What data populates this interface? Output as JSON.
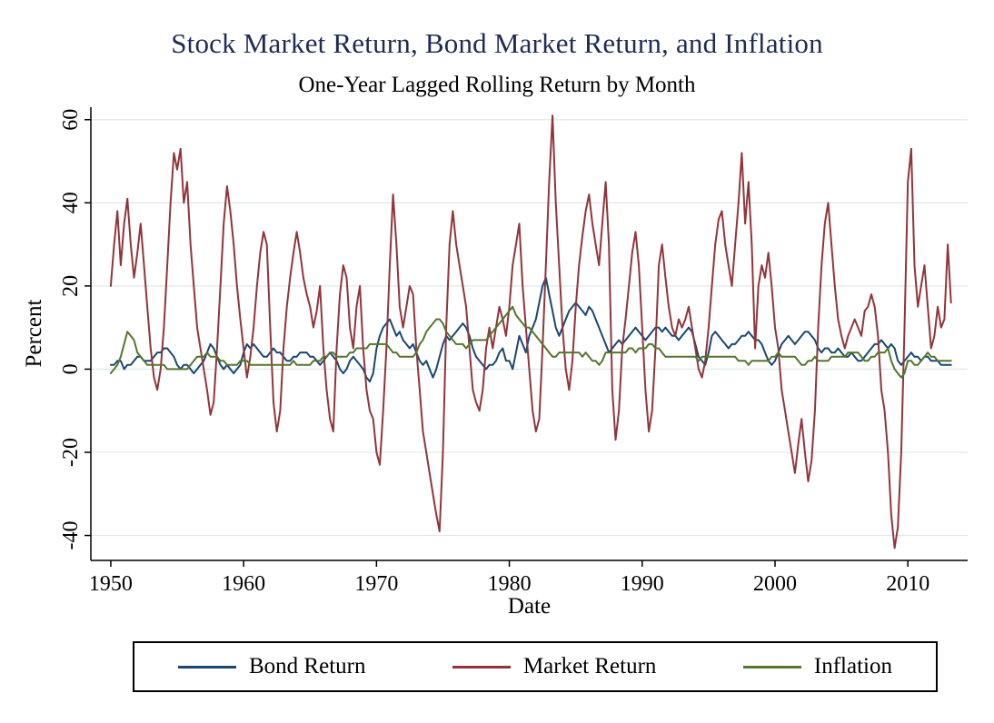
{
  "chart_data": {
    "type": "line",
    "title": "Stock Market Return, Bond Market Return, and Inflation",
    "subtitle": "One-Year Lagged Rolling Return by Month",
    "xlabel": "Date",
    "ylabel": "Percent",
    "x_unit": "year",
    "x_start": 1950,
    "x_step": 0.25,
    "xlim": [
      1948.5,
      2014.5
    ],
    "ylim": [
      -46,
      63
    ],
    "x_ticks": [
      1950,
      1960,
      1970,
      1980,
      1990,
      2000,
      2010
    ],
    "y_ticks": [
      -40,
      -20,
      0,
      20,
      40,
      60
    ],
    "grid": "horizontal",
    "legend_position": "bottom",
    "colors": {
      "grid": "#dfe9ee",
      "axis": "#000000",
      "title": "#1f2b55",
      "background": "#ffffff"
    },
    "series": [
      {
        "name": "Bond Return",
        "color": "#1a476f",
        "values": [
          1,
          1,
          2,
          2,
          0,
          1,
          1,
          2,
          3,
          3,
          2,
          2,
          2,
          3,
          4,
          4,
          5,
          5,
          4,
          3,
          1,
          0,
          1,
          1,
          0,
          -1,
          0,
          1,
          2,
          4,
          6,
          5,
          3,
          1,
          0,
          1,
          0,
          -1,
          0,
          1,
          4,
          6,
          5,
          6,
          5,
          4,
          3,
          3,
          4,
          5,
          4,
          4,
          3,
          2,
          2,
          3,
          3,
          4,
          4,
          4,
          3,
          3,
          2,
          1,
          2,
          3,
          4,
          3,
          2,
          0,
          -1,
          0,
          2,
          3,
          2,
          1,
          0,
          -2,
          -3,
          -1,
          5,
          8,
          10,
          11,
          12,
          10,
          8,
          9,
          7,
          6,
          5,
          6,
          4,
          2,
          1,
          2,
          0,
          -2,
          0,
          3,
          6,
          8,
          7,
          8,
          9,
          10,
          11,
          10,
          8,
          5,
          3,
          2,
          1,
          0,
          1,
          1,
          2,
          4,
          5,
          2,
          2,
          0,
          4,
          8,
          6,
          4,
          8,
          10,
          12,
          16,
          20,
          22,
          18,
          14,
          10,
          8,
          10,
          12,
          14,
          15,
          16,
          15,
          14,
          13,
          15,
          14,
          12,
          10,
          8,
          6,
          4,
          5,
          6,
          7,
          6,
          7,
          8,
          9,
          10,
          9,
          8,
          7,
          8,
          9,
          10,
          10,
          9,
          10,
          9,
          8,
          8,
          7,
          8,
          9,
          10,
          9,
          6,
          3,
          2,
          1,
          4,
          8,
          9,
          8,
          7,
          6,
          5,
          6,
          6,
          7,
          8,
          8,
          9,
          8,
          7,
          7,
          6,
          4,
          2,
          1,
          2,
          4,
          6,
          7,
          8,
          7,
          6,
          7,
          8,
          9,
          9,
          8,
          7,
          5,
          4,
          5,
          5,
          4,
          4,
          5,
          4,
          3,
          3,
          4,
          3,
          2,
          2,
          3,
          4,
          5,
          6,
          6,
          7,
          6,
          5,
          6,
          5,
          2,
          1,
          2,
          3,
          4,
          3,
          3,
          2,
          3,
          3,
          2,
          2,
          2,
          1,
          1,
          1,
          1
        ]
      },
      {
        "name": "Market Return",
        "color": "#90353b",
        "values": [
          20,
          30,
          38,
          25,
          35,
          41,
          30,
          22,
          28,
          35,
          25,
          15,
          5,
          -2,
          -5,
          0,
          10,
          25,
          40,
          52,
          48,
          53,
          40,
          45,
          30,
          20,
          10,
          5,
          0,
          -5,
          -11,
          -8,
          5,
          20,
          35,
          44,
          38,
          30,
          20,
          12,
          5,
          -2,
          3,
          10,
          20,
          28,
          33,
          30,
          10,
          -8,
          -15,
          -10,
          5,
          15,
          22,
          28,
          33,
          28,
          22,
          18,
          15,
          10,
          14,
          20,
          5,
          -5,
          -12,
          -15,
          5,
          18,
          25,
          22,
          10,
          5,
          15,
          20,
          5,
          -5,
          -10,
          -12,
          -20,
          -23,
          -10,
          5,
          25,
          42,
          30,
          15,
          10,
          15,
          20,
          18,
          5,
          -5,
          -15,
          -20,
          -25,
          -30,
          -35,
          -39,
          -20,
          10,
          30,
          38,
          30,
          25,
          20,
          15,
          5,
          -5,
          -8,
          -10,
          -5,
          5,
          10,
          5,
          10,
          15,
          12,
          8,
          15,
          25,
          30,
          35,
          20,
          10,
          0,
          -10,
          -15,
          -12,
          5,
          25,
          45,
          61,
          40,
          25,
          10,
          0,
          -5,
          2,
          15,
          25,
          32,
          38,
          42,
          35,
          30,
          25,
          35,
          45,
          30,
          -5,
          -17,
          -10,
          5,
          12,
          20,
          28,
          33,
          25,
          10,
          -5,
          -15,
          -10,
          5,
          25,
          30,
          22,
          15,
          10,
          8,
          12,
          10,
          12,
          15,
          10,
          5,
          0,
          -2,
          2,
          10,
          20,
          30,
          36,
          38,
          30,
          25,
          20,
          30,
          40,
          52,
          35,
          45,
          30,
          5,
          20,
          25,
          22,
          28,
          20,
          10,
          5,
          -5,
          -10,
          -15,
          -20,
          -25,
          -18,
          -12,
          -20,
          -27,
          -22,
          -10,
          10,
          25,
          35,
          40,
          30,
          20,
          12,
          8,
          5,
          8,
          10,
          12,
          10,
          8,
          14,
          15,
          18,
          15,
          8,
          -5,
          -10,
          -20,
          -35,
          -43,
          -38,
          -20,
          10,
          45,
          53,
          25,
          15,
          20,
          25,
          15,
          5,
          8,
          15,
          10,
          12,
          30,
          16
        ]
      },
      {
        "name": "Inflation",
        "color": "#55752f",
        "values": [
          -1,
          0,
          1,
          3,
          6,
          9,
          8,
          7,
          4,
          3,
          2,
          1,
          1,
          1,
          1,
          1,
          1,
          0,
          0,
          0,
          0,
          0,
          0,
          0,
          1,
          2,
          3,
          3,
          3,
          4,
          3,
          3,
          3,
          2,
          2,
          1,
          1,
          1,
          1,
          2,
          2,
          2,
          1,
          1,
          1,
          1,
          1,
          1,
          1,
          1,
          1,
          1,
          1,
          1,
          1,
          2,
          1,
          1,
          1,
          1,
          1,
          2,
          2,
          2,
          3,
          3,
          4,
          4,
          3,
          3,
          3,
          3,
          4,
          4,
          5,
          5,
          5,
          5,
          6,
          6,
          6,
          6,
          6,
          6,
          5,
          4,
          4,
          3,
          3,
          3,
          3,
          3,
          4,
          6,
          7,
          9,
          10,
          11,
          12,
          12,
          11,
          9,
          8,
          7,
          6,
          6,
          6,
          5,
          6,
          7,
          7,
          7,
          7,
          7,
          8,
          9,
          10,
          11,
          12,
          13,
          14,
          15,
          13,
          12,
          11,
          10,
          10,
          9,
          8,
          7,
          6,
          5,
          4,
          3,
          3,
          4,
          4,
          4,
          4,
          4,
          4,
          4,
          3,
          4,
          3,
          2,
          2,
          1,
          2,
          4,
          4,
          4,
          4,
          4,
          4,
          4,
          5,
          5,
          4,
          5,
          5,
          5,
          6,
          6,
          5,
          5,
          4,
          3,
          3,
          3,
          3,
          3,
          3,
          3,
          3,
          3,
          3,
          2,
          3,
          3,
          3,
          3,
          3,
          3,
          3,
          3,
          3,
          3,
          3,
          2,
          2,
          2,
          1,
          2,
          2,
          2,
          2,
          2,
          2,
          3,
          3,
          4,
          3,
          3,
          3,
          3,
          3,
          2,
          1,
          1,
          2,
          2,
          3,
          2,
          2,
          2,
          2,
          3,
          3,
          3,
          3,
          3,
          4,
          4,
          4,
          4,
          3,
          2,
          2,
          3,
          3,
          4,
          4,
          4,
          5,
          2,
          0,
          -1,
          -2,
          -1,
          2,
          2,
          1,
          1,
          2,
          3,
          4,
          3,
          3,
          2,
          2,
          2,
          2,
          2
        ]
      }
    ]
  }
}
